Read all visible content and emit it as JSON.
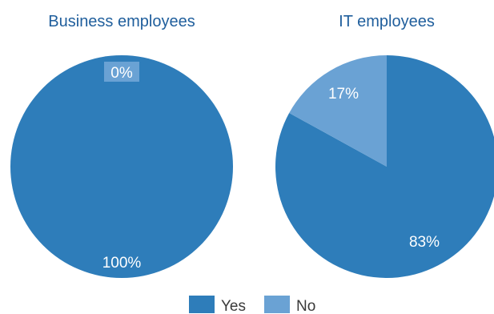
{
  "chart_data": [
    {
      "type": "pie",
      "title": "Business employees",
      "slices": [
        {
          "label": "Yes",
          "value": 100,
          "display": "100%"
        },
        {
          "label": "No",
          "value": 0,
          "display": "0%"
        }
      ]
    },
    {
      "type": "pie",
      "title": "IT employees",
      "slices": [
        {
          "label": "Yes",
          "value": 83,
          "display": "83%"
        },
        {
          "label": "No",
          "value": 17,
          "display": "17%"
        }
      ]
    }
  ],
  "legend": {
    "items": [
      {
        "label": "Yes",
        "color": "#2e7dba"
      },
      {
        "label": "No",
        "color": "#6aa2d4"
      }
    ]
  },
  "colors": {
    "yes": "#2e7dba",
    "no": "#6aa2d4",
    "title": "#1f5e9c"
  }
}
